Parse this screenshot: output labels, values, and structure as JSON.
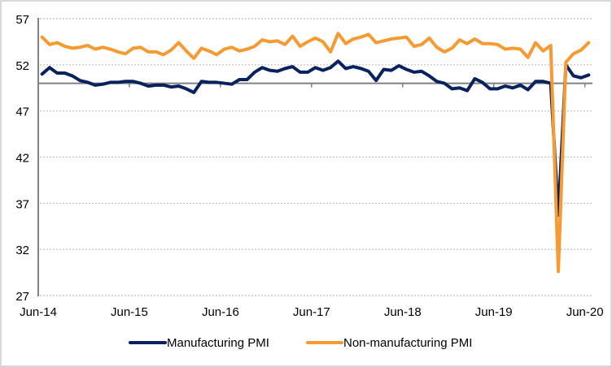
{
  "chart_data": {
    "type": "line",
    "title": "",
    "xlabel": "",
    "ylabel": "",
    "ylim": [
      27,
      57
    ],
    "yticks": [
      57,
      52,
      47,
      42,
      37,
      32,
      27
    ],
    "reference_line": 50,
    "grid": true,
    "legend_position": "bottom",
    "x": [
      "Jun-14",
      "Jul-14",
      "Aug-14",
      "Sep-14",
      "Oct-14",
      "Nov-14",
      "Dec-14",
      "Jan-15",
      "Feb-15",
      "Mar-15",
      "Apr-15",
      "May-15",
      "Jun-15",
      "Jul-15",
      "Aug-15",
      "Sep-15",
      "Oct-15",
      "Nov-15",
      "Dec-15",
      "Jan-16",
      "Feb-16",
      "Mar-16",
      "Apr-16",
      "May-16",
      "Jun-16",
      "Jul-16",
      "Aug-16",
      "Sep-16",
      "Oct-16",
      "Nov-16",
      "Dec-16",
      "Jan-17",
      "Feb-17",
      "Mar-17",
      "Apr-17",
      "May-17",
      "Jun-17",
      "Jul-17",
      "Aug-17",
      "Sep-17",
      "Oct-17",
      "Nov-17",
      "Dec-17",
      "Jan-18",
      "Feb-18",
      "Mar-18",
      "Apr-18",
      "May-18",
      "Jun-18",
      "Jul-18",
      "Aug-18",
      "Sep-18",
      "Oct-18",
      "Nov-18",
      "Dec-18",
      "Jan-19",
      "Feb-19",
      "Mar-19",
      "Apr-19",
      "May-19",
      "Jun-19",
      "Jul-19",
      "Aug-19",
      "Sep-19",
      "Oct-19",
      "Nov-19",
      "Dec-19",
      "Jan-20",
      "Feb-20",
      "Mar-20",
      "Apr-20",
      "May-20",
      "Jun-20"
    ],
    "xtick_labels": [
      "Jun-14",
      "Jun-15",
      "Jun-16",
      "Jun-17",
      "Jun-18",
      "Jun-19",
      "Jun-20"
    ],
    "series": [
      {
        "name": "Manufacturing PMI",
        "color": "#0A2160",
        "values": [
          51.0,
          51.7,
          51.1,
          51.1,
          50.8,
          50.3,
          50.1,
          49.8,
          49.9,
          50.1,
          50.1,
          50.2,
          50.2,
          50.0,
          49.7,
          49.8,
          49.8,
          49.6,
          49.7,
          49.4,
          49.0,
          50.2,
          50.1,
          50.1,
          50.0,
          49.9,
          50.4,
          50.4,
          51.2,
          51.7,
          51.4,
          51.3,
          51.6,
          51.8,
          51.2,
          51.2,
          51.7,
          51.4,
          51.7,
          52.4,
          51.6,
          51.8,
          51.6,
          51.3,
          50.3,
          51.5,
          51.4,
          51.9,
          51.5,
          51.2,
          51.3,
          50.8,
          50.2,
          50.0,
          49.4,
          49.5,
          49.2,
          50.5,
          50.1,
          49.4,
          49.4,
          49.7,
          49.5,
          49.8,
          49.3,
          50.2,
          50.2,
          50.0,
          35.7,
          52.0,
          50.8,
          50.6,
          50.9
        ]
      },
      {
        "name": "Non-manufacturing PMI",
        "color": "#F79A32",
        "values": [
          55.0,
          54.2,
          54.4,
          54.0,
          53.8,
          53.9,
          54.1,
          53.7,
          53.9,
          53.7,
          53.4,
          53.2,
          53.8,
          53.9,
          53.4,
          53.4,
          53.1,
          53.6,
          54.4,
          53.5,
          52.7,
          53.8,
          53.5,
          53.1,
          53.7,
          53.9,
          53.5,
          53.7,
          54.0,
          54.7,
          54.5,
          54.6,
          54.2,
          55.1,
          54.0,
          54.5,
          54.9,
          54.5,
          53.4,
          55.4,
          54.3,
          54.8,
          55.0,
          55.3,
          54.4,
          54.6,
          54.8,
          54.9,
          55.0,
          54.0,
          54.2,
          54.9,
          53.9,
          53.4,
          53.8,
          54.7,
          54.3,
          54.8,
          54.3,
          54.3,
          54.2,
          53.7,
          53.8,
          53.7,
          52.8,
          54.4,
          53.5,
          54.1,
          29.6,
          52.3,
          53.2,
          53.6,
          54.4
        ]
      }
    ]
  }
}
